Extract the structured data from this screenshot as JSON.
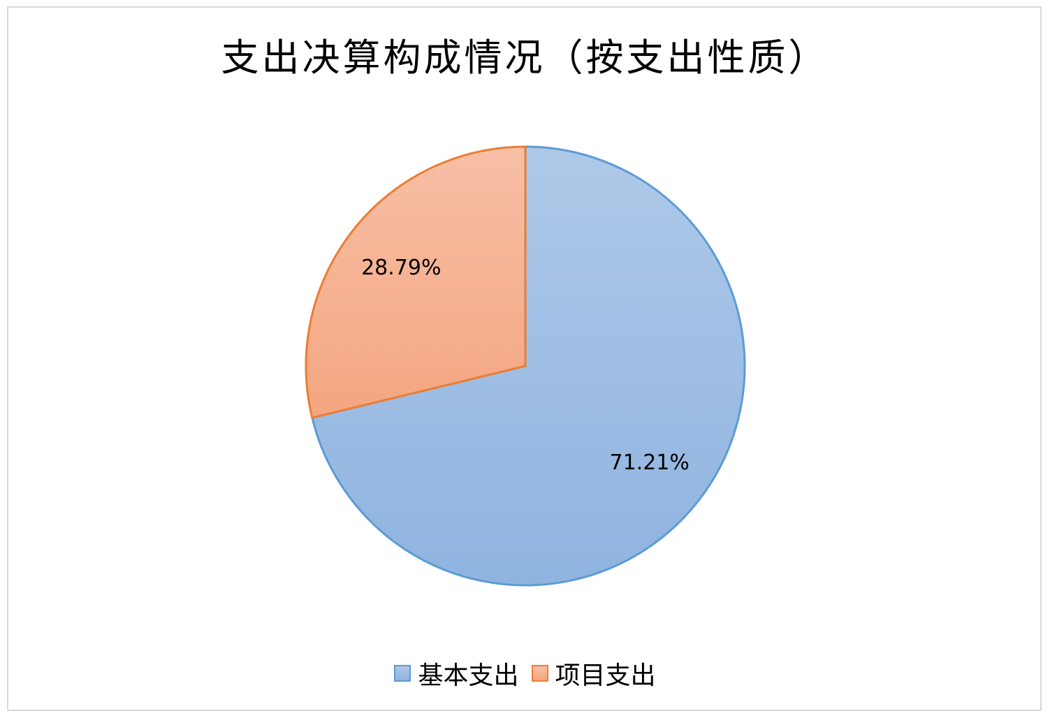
{
  "chart_data": {
    "type": "pie",
    "title": "支出决算构成情况（按支出性质）",
    "legend_position": "bottom",
    "slices": [
      {
        "name": "基本支出",
        "value": 71.21,
        "label": "71.21%",
        "fill_top": "#aec8e8",
        "fill_bottom": "#8fb4e0",
        "stroke": "#5b9bd5"
      },
      {
        "name": "项目支出",
        "value": 28.79,
        "label": "28.79%",
        "fill_top": "#f7bfa6",
        "fill_bottom": "#f4a67f",
        "stroke": "#ed7d31"
      }
    ]
  }
}
